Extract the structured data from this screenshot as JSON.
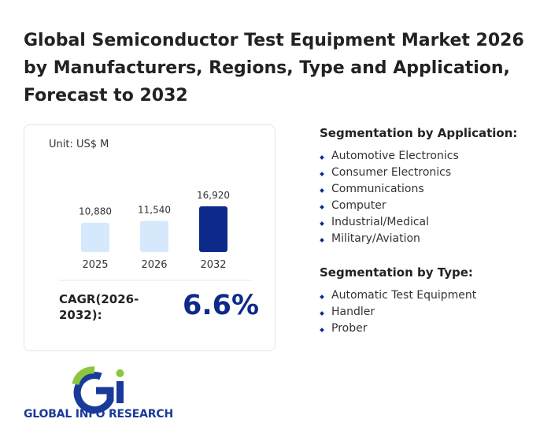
{
  "title": "Global Semiconductor Test Equipment Market 2026 by Manufacturers, Regions, Type and Application, Forecast to 2032",
  "chart_data": {
    "type": "bar",
    "unit": "Unit: US$ M",
    "categories": [
      "2025",
      "2026",
      "2032"
    ],
    "values": [
      10880,
      11540,
      16920
    ],
    "value_labels": [
      "10,880",
      "11,540",
      "16,920"
    ],
    "colors": [
      "#d6e8fb",
      "#d6e8fb",
      "#0d2a8a"
    ]
  },
  "cagr": {
    "label": "CAGR(2026-2032):",
    "value": "6.6%"
  },
  "segments": [
    {
      "heading": "Segmentation by Application:",
      "items": [
        "Automotive Electronics",
        "Consumer Electronics",
        "Communications",
        "Computer",
        "Industrial/Medical",
        "Military/Aviation"
      ]
    },
    {
      "heading": "Segmentation by Type:",
      "items": [
        "Automatic Test Equipment",
        "Handler",
        "Prober"
      ]
    }
  ],
  "logo": {
    "text": "GLOBAL INFO RESEARCH"
  }
}
